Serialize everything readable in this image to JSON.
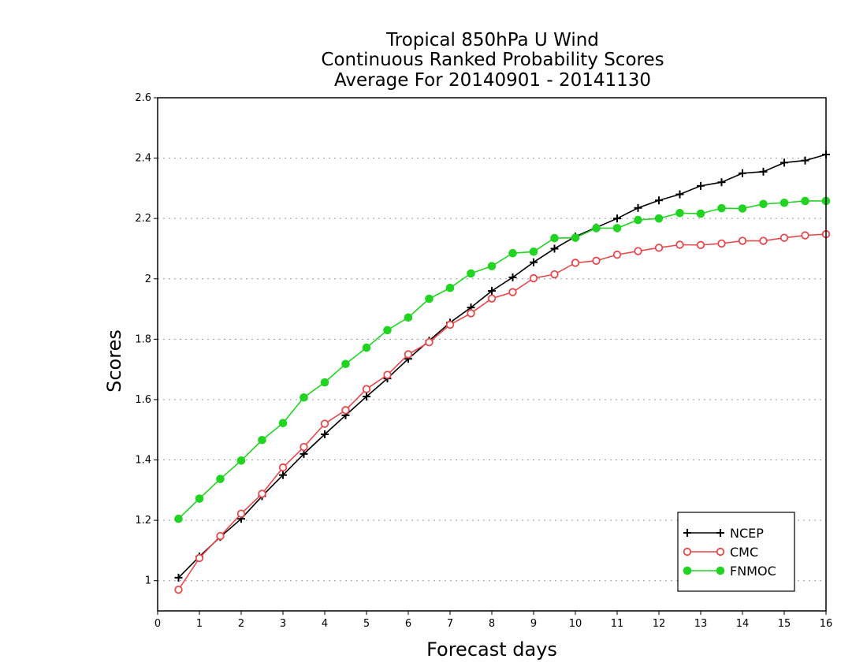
{
  "chart_data": {
    "type": "line",
    "title": [
      "Tropical 850hPa U Wind",
      "Continuous Ranked Probability Scores",
      "Average For 20140901 - 20141130"
    ],
    "xlabel": "Forecast days",
    "ylabel": "Scores",
    "xlim": [
      0,
      16
    ],
    "ylim": [
      0.9,
      2.6
    ],
    "xticks": [
      0,
      1,
      2,
      3,
      4,
      5,
      6,
      7,
      8,
      9,
      10,
      11,
      12,
      13,
      14,
      15,
      16
    ],
    "yticks": [
      1,
      1.2,
      1.4,
      1.6,
      1.8,
      2,
      2.2,
      2.4,
      2.6
    ],
    "grid": "horizontal dotted",
    "legend_position": "bottom-right",
    "x": [
      0.5,
      1,
      1.5,
      2,
      2.5,
      3,
      3.5,
      4,
      4.5,
      5,
      5.5,
      6,
      6.5,
      7,
      7.5,
      8,
      8.5,
      9,
      9.5,
      10,
      10.5,
      11,
      11.5,
      12,
      12.5,
      13,
      13.5,
      14,
      14.5,
      15,
      15.5,
      16
    ],
    "series": [
      {
        "name": "NCEP",
        "color": "#000000",
        "marker": "plus",
        "values": [
          1.01,
          1.08,
          1.145,
          1.205,
          1.28,
          1.35,
          1.42,
          1.485,
          1.548,
          1.61,
          1.67,
          1.735,
          1.795,
          1.855,
          1.905,
          1.96,
          2.005,
          2.055,
          2.1,
          2.14,
          2.17,
          2.2,
          2.235,
          2.26,
          2.28,
          2.308,
          2.32,
          2.35,
          2.355,
          2.385,
          2.392,
          2.412
        ]
      },
      {
        "name": "CMC",
        "color": "#e8474b",
        "marker": "open-circle",
        "values": [
          0.97,
          1.075,
          1.148,
          1.222,
          1.288,
          1.375,
          1.443,
          1.52,
          1.565,
          1.635,
          1.682,
          1.75,
          1.79,
          1.848,
          1.886,
          1.935,
          1.956,
          2.002,
          2.015,
          2.053,
          2.06,
          2.08,
          2.092,
          2.103,
          2.113,
          2.112,
          2.117,
          2.126,
          2.126,
          2.136,
          2.144,
          2.148
        ]
      },
      {
        "name": "FNMOC",
        "color": "#22d422",
        "marker": "filled-circle",
        "values": [
          1.205,
          1.272,
          1.337,
          1.398,
          1.466,
          1.522,
          1.607,
          1.657,
          1.718,
          1.772,
          1.83,
          1.872,
          1.934,
          1.97,
          2.018,
          2.042,
          2.085,
          2.09,
          2.135,
          2.136,
          2.168,
          2.168,
          2.195,
          2.2,
          2.218,
          2.216,
          2.234,
          2.233,
          2.248,
          2.252,
          2.258,
          2.258
        ]
      }
    ]
  }
}
